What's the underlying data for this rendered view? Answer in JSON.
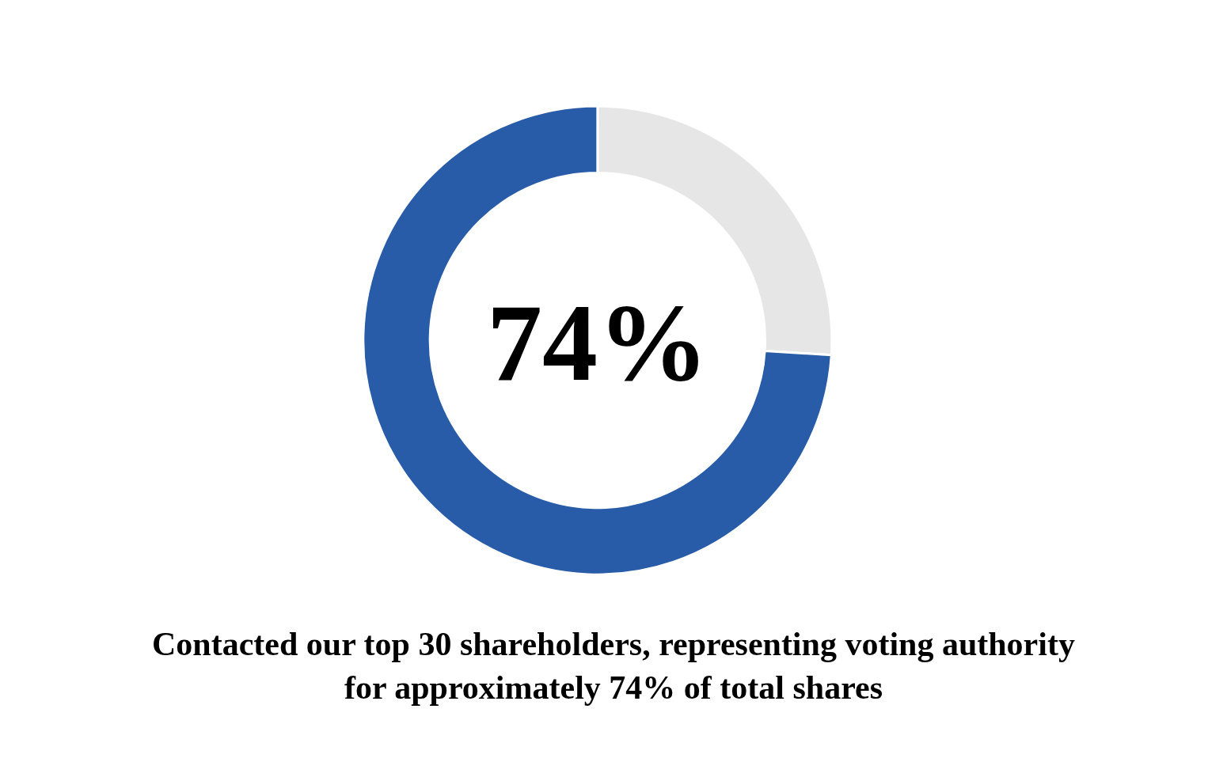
{
  "chart_data": {
    "type": "donut",
    "categories": [
      null,
      null
    ],
    "values": [
      26,
      74
    ],
    "colors": [
      "#e6e6e6",
      "#285ca8"
    ],
    "annotations": [
      {
        "text": "74%"
      },
      {
        "text": "Contacted our top 30 shareholders, representing voting authority\nfor approximately 74% of total shares"
      }
    ]
  }
}
